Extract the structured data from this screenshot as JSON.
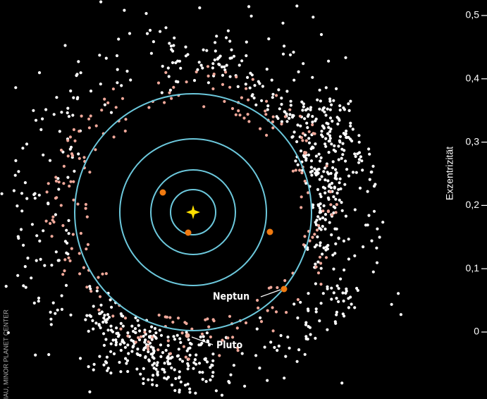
{
  "labels": {
    "neptune": "Neptun",
    "pluto": "Pluto"
  },
  "credit": "IAU, MINOR PLANET CENTER",
  "axis": {
    "label": "Exzentrizität",
    "ylim": [
      0,
      0.5
    ],
    "ticks": [
      0,
      {
        "value": 0.1,
        "label": "0,1"
      },
      {
        "value": 0.2,
        "label": "0,2"
      },
      {
        "value": 0.3,
        "label": "0,3"
      },
      {
        "value": 0.4,
        "label": "0,4"
      },
      {
        "value": 0.5,
        "label": "0,5"
      }
    ]
  }
}
